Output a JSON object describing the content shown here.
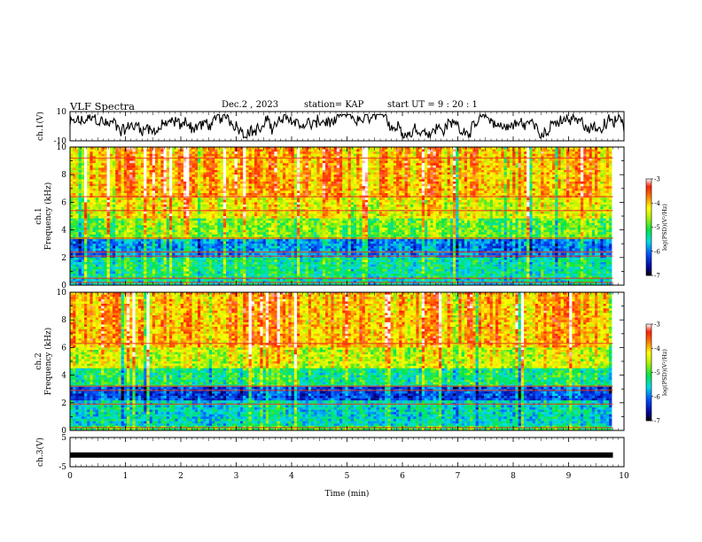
{
  "header": {
    "title": "VLF Spectra",
    "date": "Dec.2  , 2023",
    "station": "station= KAP",
    "start": "start  UT  =   9 : 20 : 1"
  },
  "chart_data": [
    {
      "type": "line",
      "panel": "ch1-waveform",
      "ylabel": "ch.1(V)",
      "ylim": [
        -10,
        10
      ],
      "yticks": [
        "10",
        "-10"
      ],
      "xlim": [
        0,
        10
      ],
      "color": "#000000"
    },
    {
      "type": "heatmap",
      "panel": "ch1-spectrogram",
      "ylabel": "ch.1 Frequency (kHz)",
      "ylabel_lines": [
        "ch.1",
        "Frequency (kHz)"
      ],
      "ylim": [
        0,
        10
      ],
      "yticks": [
        "0",
        "2",
        "4",
        "6",
        "8",
        "10"
      ],
      "xlim": [
        0,
        9.8
      ],
      "colorbar": {
        "label": "log(PSD)(V²/Hz)",
        "ticks": [
          "-3",
          "-4",
          "-5",
          "-6",
          "-7"
        ],
        "range": [
          -7,
          -3
        ]
      },
      "bands": [
        {
          "from_khz": 0,
          "to_khz": 0.5,
          "level": -5.5
        },
        {
          "from_khz": 0.5,
          "to_khz": 2.0,
          "level": -5.3
        },
        {
          "from_khz": 2.0,
          "to_khz": 3.4,
          "level": -5.9
        },
        {
          "from_khz": 3.4,
          "to_khz": 4.9,
          "level": -4.8
        },
        {
          "from_khz": 4.9,
          "to_khz": 6.3,
          "level": -4.3
        },
        {
          "from_khz": 6.3,
          "to_khz": 10,
          "level": -3.9
        }
      ],
      "lines_khz": [
        0.2,
        0.5,
        2.1,
        2.4,
        3.4,
        5.4,
        6.4,
        9.2
      ]
    },
    {
      "type": "heatmap",
      "panel": "ch2-spectrogram",
      "ylabel": "ch.2 Frequency (kHz)",
      "ylabel_lines": [
        "ch.2",
        "Frequency (kHz)"
      ],
      "ylim": [
        0,
        10
      ],
      "yticks": [
        "0",
        "2",
        "4",
        "6",
        "8",
        "10"
      ],
      "xlim": [
        0,
        9.8
      ],
      "colorbar": {
        "label": "log(PSD)(V²/Hz)",
        "ticks": [
          "-3",
          "-4",
          "-5",
          "-6",
          "-7"
        ],
        "range": [
          -7,
          -3
        ]
      },
      "bands": [
        {
          "from_khz": 0,
          "to_khz": 0.4,
          "level": -5.0
        },
        {
          "from_khz": 0.4,
          "to_khz": 2.1,
          "level": -5.5
        },
        {
          "from_khz": 2.1,
          "to_khz": 3.2,
          "level": -6.2
        },
        {
          "from_khz": 3.2,
          "to_khz": 4.5,
          "level": -5.2
        },
        {
          "from_khz": 4.5,
          "to_khz": 6.0,
          "level": -4.4
        },
        {
          "from_khz": 6.0,
          "to_khz": 10,
          "level": -3.9
        }
      ],
      "lines_khz": [
        0.2,
        1.9,
        2.9,
        3.2,
        6.3
      ]
    },
    {
      "type": "line",
      "panel": "ch3-waveform",
      "ylabel": "ch.3(V)",
      "ylim": [
        -5,
        5
      ],
      "yticks": [
        "5",
        "-5"
      ],
      "xlim": [
        0,
        9.8
      ],
      "value": -1,
      "color": "#000000"
    }
  ],
  "xaxis": {
    "label": "Time (min)",
    "ticks": [
      "0",
      "1",
      "2",
      "3",
      "4",
      "5",
      "6",
      "7",
      "8",
      "9",
      "10"
    ],
    "range": [
      0,
      10
    ]
  }
}
